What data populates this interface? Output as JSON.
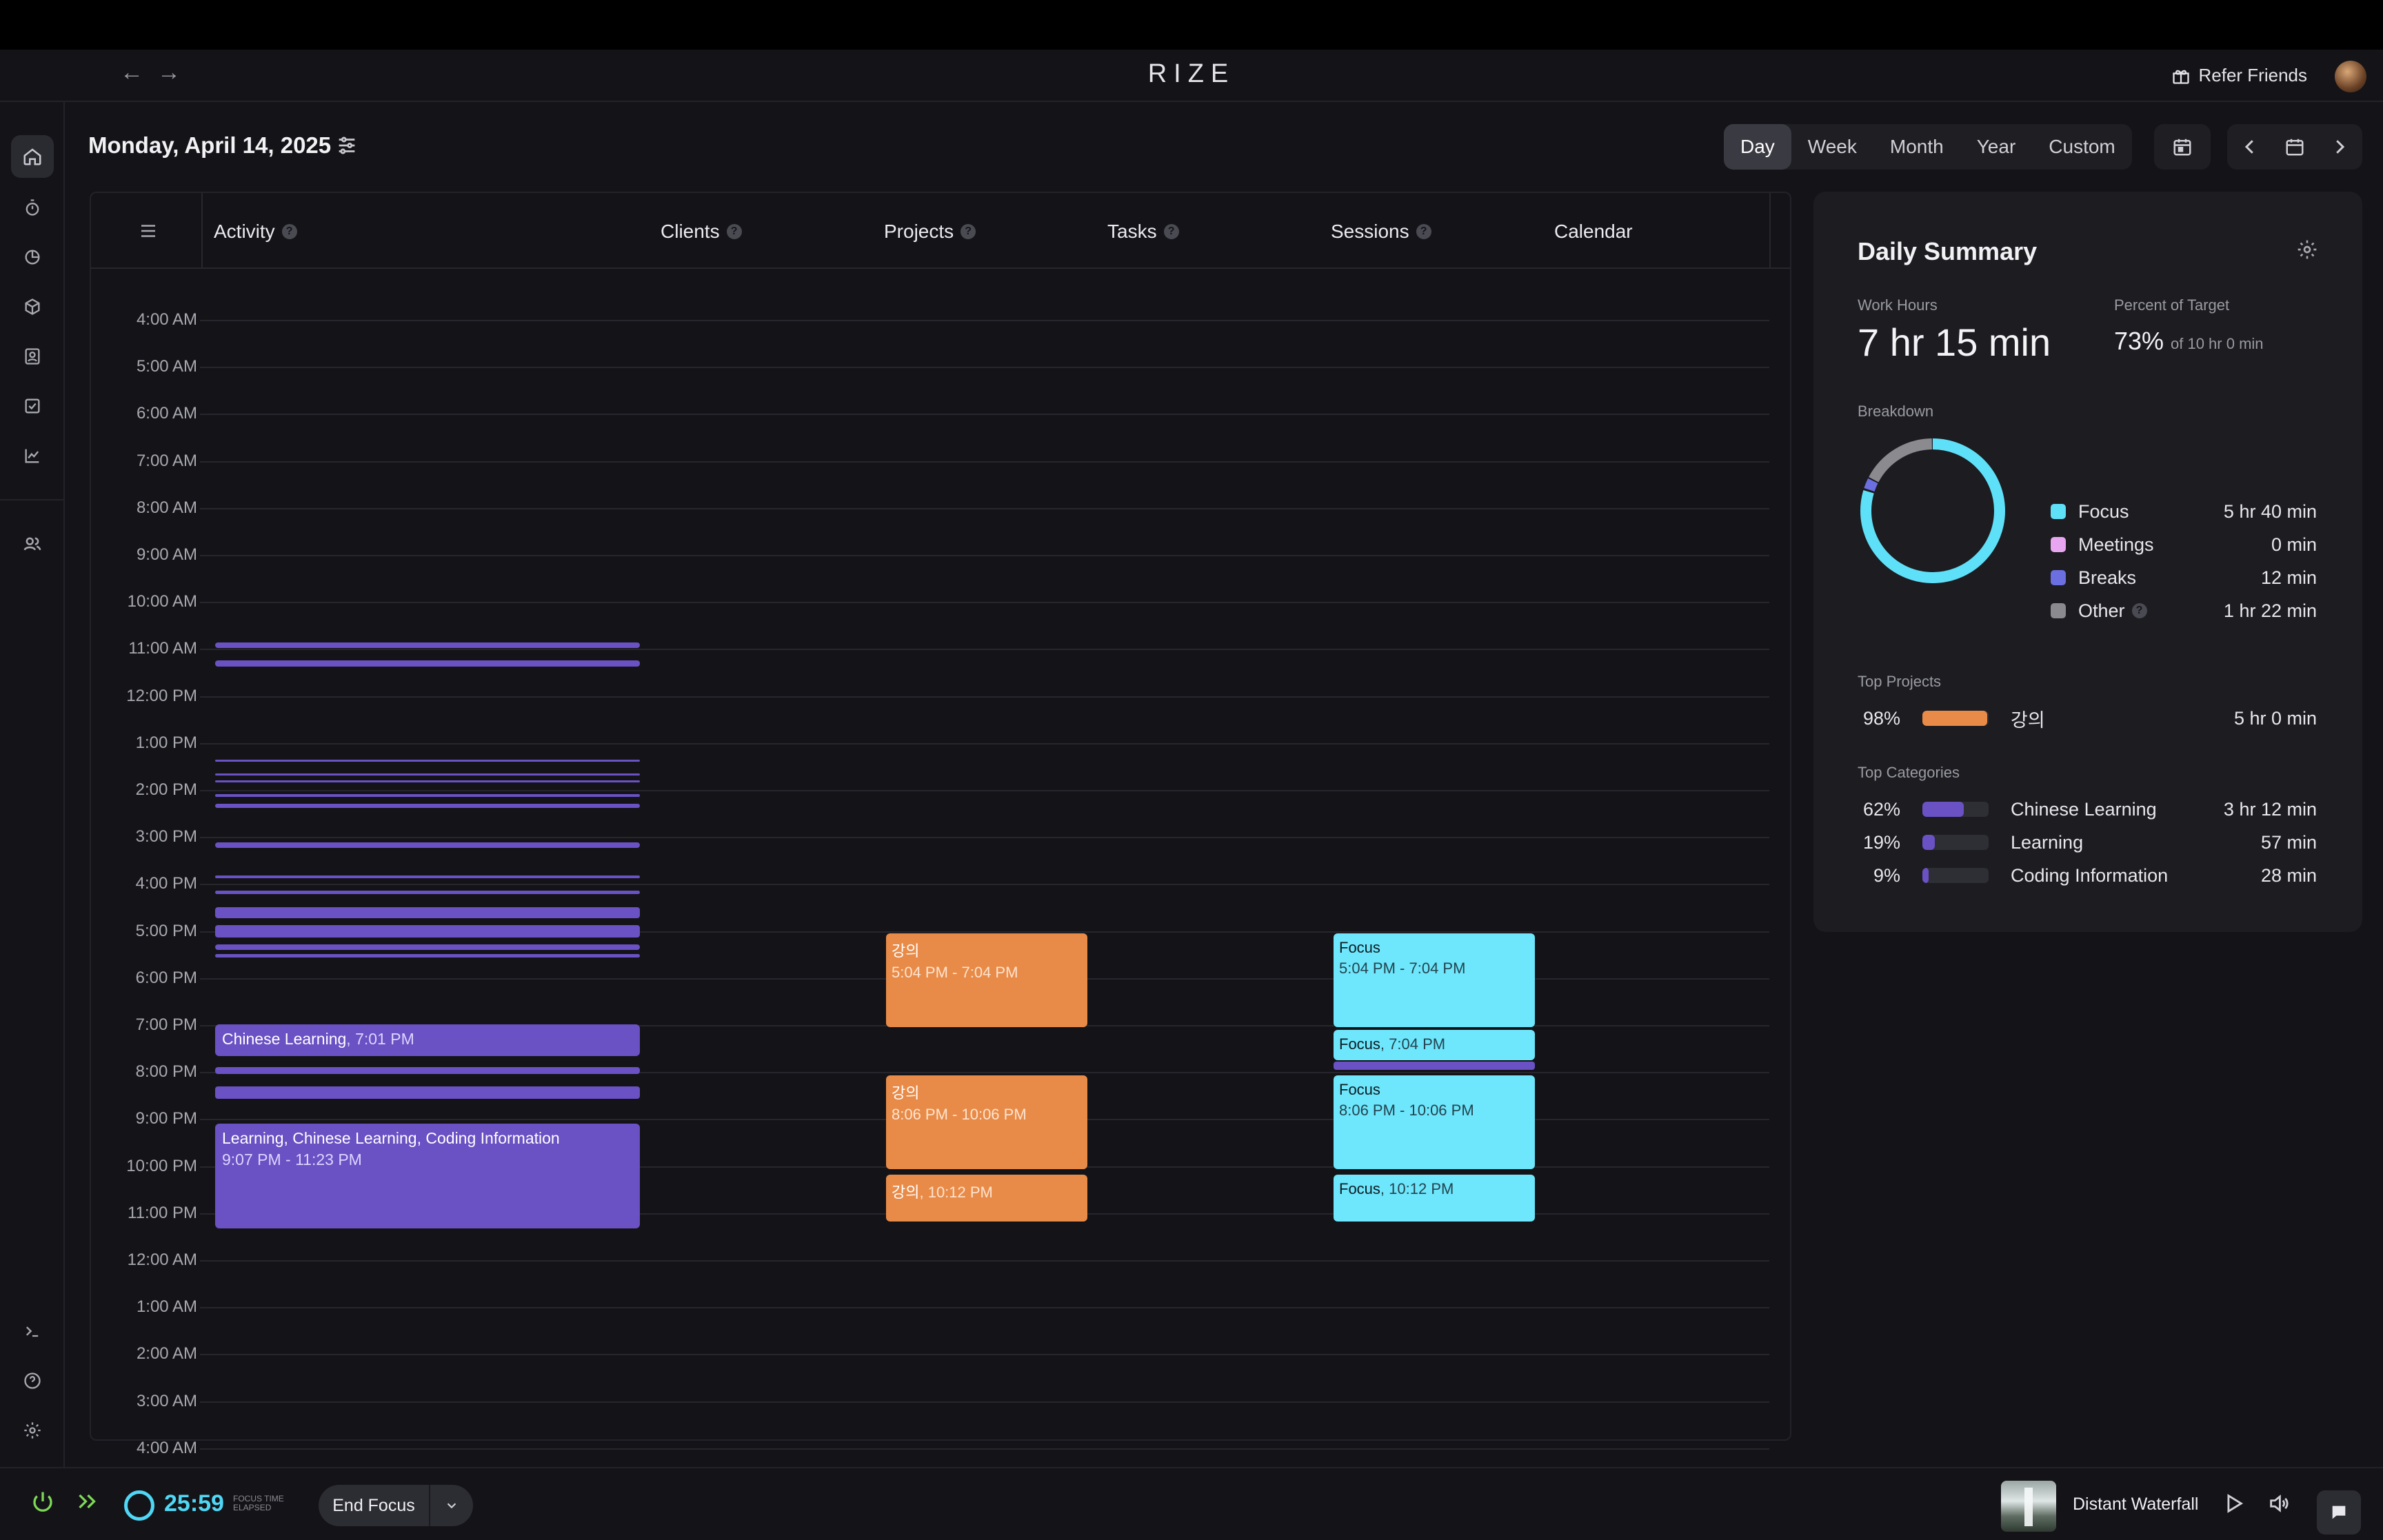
{
  "app": {
    "brand": "RIZE",
    "refer_label": "Refer Friends"
  },
  "header": {
    "date": "Monday, April 14, 2025",
    "range_tabs": [
      "Day",
      "Week",
      "Month",
      "Year",
      "Custom"
    ],
    "active_tab": "Day"
  },
  "columns": [
    "Activity",
    "Clients",
    "Projects",
    "Tasks",
    "Sessions",
    "Calendar"
  ],
  "hours": [
    "4:00 AM",
    "5:00 AM",
    "6:00 AM",
    "7:00 AM",
    "8:00 AM",
    "9:00 AM",
    "10:00 AM",
    "11:00 AM",
    "12:00 PM",
    "1:00 PM",
    "2:00 PM",
    "3:00 PM",
    "4:00 PM",
    "5:00 PM",
    "6:00 PM",
    "7:00 PM",
    "8:00 PM",
    "9:00 PM",
    "10:00 PM",
    "11:00 PM",
    "12:00 AM",
    "1:00 AM",
    "2:00 AM",
    "3:00 AM",
    "4:00 AM"
  ],
  "activity": {
    "block1": {
      "title": "Chinese Learning",
      "time": ", 7:01 PM"
    },
    "block2": {
      "title": "Learning, Chinese Learning, Coding Information",
      "time": "9:07 PM - 11:23 PM"
    }
  },
  "projects": {
    "b1": {
      "title": "강의",
      "time": "5:04 PM - 7:04 PM"
    },
    "b2": {
      "title": "강의",
      "time": "8:06 PM - 10:06 PM"
    },
    "b3": {
      "title": "강의",
      "time": ", 10:12 PM"
    }
  },
  "sessions": {
    "b1": {
      "title": "Focus",
      "time": "5:04 PM - 7:04 PM"
    },
    "b2": {
      "title": "Focus",
      "time": ", 7:04 PM"
    },
    "b3": {
      "title": "Focus",
      "time": "8:06 PM - 10:06 PM"
    },
    "b4": {
      "title": "Focus",
      "time": ", 10:12 PM"
    }
  },
  "summary": {
    "title": "Daily Summary",
    "work_hours_label": "Work Hours",
    "work_hours": "7 hr 15 min",
    "percent_label": "Percent of Target",
    "percent": "73%",
    "percent_of": "of 10 hr 0 min",
    "breakdown_label": "Breakdown",
    "breakdown": [
      {
        "name": "Focus",
        "value": "5 hr 40 min",
        "color": "#5ee0f8"
      },
      {
        "name": "Meetings",
        "value": "0 min",
        "color": "#e9a6f0"
      },
      {
        "name": "Breaks",
        "value": "12 min",
        "color": "#6b6fe0"
      },
      {
        "name": "Other",
        "value": "1 hr 22 min",
        "color": "#8a8a8f"
      }
    ],
    "top_projects_label": "Top Projects",
    "top_projects": [
      {
        "pct": "98%",
        "name": "강의",
        "value": "5 hr 0 min",
        "fill": 0.98,
        "color": "#e98b48"
      }
    ],
    "top_categories_label": "Top Categories",
    "top_categories": [
      {
        "pct": "62%",
        "name": "Chinese Learning",
        "value": "3 hr 12 min",
        "fill": 0.62,
        "color": "#6a51c4"
      },
      {
        "pct": "19%",
        "name": "Learning",
        "value": "57 min",
        "fill": 0.19,
        "color": "#6a51c4"
      },
      {
        "pct": "9%",
        "name": "Coding Information",
        "value": "28 min",
        "fill": 0.09,
        "color": "#6a51c4"
      }
    ]
  },
  "footer": {
    "timer": "25:59",
    "timer_label_1": "Focus time",
    "timer_label_2": "Elapsed",
    "end_focus": "End Focus",
    "track": "Distant Waterfall"
  }
}
